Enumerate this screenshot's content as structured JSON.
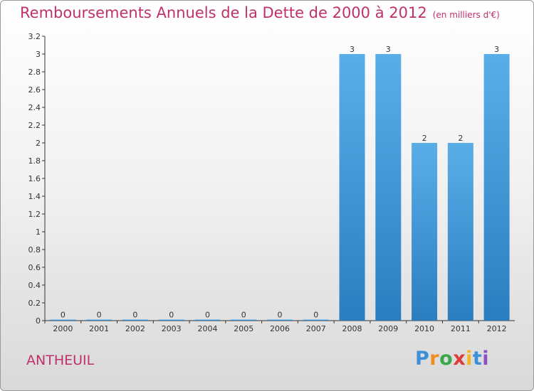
{
  "chart_data": {
    "type": "bar",
    "title": "Remboursements Annuels de la Dette de 2000 à 2012",
    "unit_label": "(en milliers d'€)",
    "categories": [
      "2000",
      "2001",
      "2002",
      "2003",
      "2004",
      "2005",
      "2006",
      "2007",
      "2008",
      "2009",
      "2010",
      "2011",
      "2012"
    ],
    "values": [
      0,
      0,
      0,
      0,
      0,
      0,
      0,
      0,
      3,
      3,
      2,
      2,
      3
    ],
    "data_labels": [
      "0",
      "0",
      "0",
      "0",
      "0",
      "0",
      "0",
      "0",
      "3",
      "3",
      "2",
      "2",
      "3"
    ],
    "ylim": [
      0,
      3.2
    ],
    "y_ticks": [
      0,
      0.2,
      0.4,
      0.6,
      0.8,
      1.0,
      1.2,
      1.4,
      1.6,
      1.8,
      2.0,
      2.2,
      2.4,
      2.6,
      2.8,
      3.0,
      3.2
    ],
    "y_tick_labels": [
      "0",
      "0.2",
      "0.4",
      "0.6",
      "0.8",
      "1",
      "1.2",
      "1.4",
      "1.6",
      "1.8",
      "2",
      "2.2",
      "2.4",
      "2.6",
      "2.8",
      "3",
      "3.2"
    ],
    "grid": false,
    "legend": "none",
    "bar_color_light": "#5aaee8",
    "bar_color_dark": "#2a7ec0"
  },
  "footer": {
    "commune": "ANTHEUIL",
    "logo_letters": [
      "P",
      "r",
      "o",
      "x",
      "i",
      "t",
      "i"
    ]
  },
  "colors": {
    "title": "#c0306a",
    "axis": "#333333"
  }
}
